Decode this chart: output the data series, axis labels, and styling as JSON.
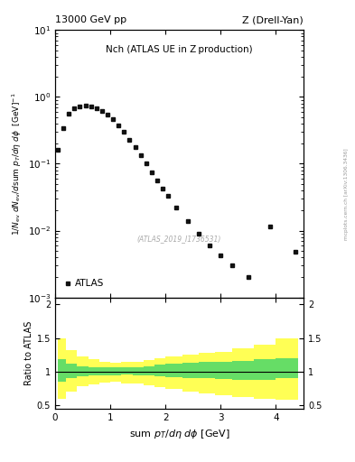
{
  "title_left": "13000 GeV pp",
  "title_right": "Z (Drell-Yan)",
  "plot_title": "Nch (ATLAS UE in Z production)",
  "xlabel": "sum p_{T}/d\\eta d\\phi [GeV]",
  "ylabel_top": "1/N_{ev} dN_{ev}/dsum p_{T}/d\\eta d\\phi  [GeV]",
  "ratio_ylabel": "Ratio to ATLAS",
  "watermark": "(ATLAS_2019_I1736531)",
  "arxiv_text": "mcplots.cern.ch [arXiv:1306.3436]",
  "legend_label": "ATLAS",
  "data_x": [
    0.05,
    0.15,
    0.25,
    0.35,
    0.45,
    0.55,
    0.65,
    0.75,
    0.85,
    0.95,
    1.05,
    1.15,
    1.25,
    1.35,
    1.45,
    1.55,
    1.65,
    1.75,
    1.85,
    1.95,
    2.05,
    2.2,
    2.4,
    2.6,
    2.8,
    3.0,
    3.2,
    3.5,
    3.9,
    4.35
  ],
  "data_y": [
    0.16,
    0.34,
    0.56,
    0.68,
    0.72,
    0.73,
    0.72,
    0.68,
    0.62,
    0.54,
    0.46,
    0.38,
    0.3,
    0.23,
    0.175,
    0.135,
    0.1,
    0.075,
    0.057,
    0.043,
    0.033,
    0.022,
    0.014,
    0.009,
    0.006,
    0.0042,
    0.003,
    0.002,
    0.0115,
    0.0048
  ],
  "ylim_main": [
    0.001,
    10
  ],
  "xlim": [
    0,
    4.5
  ],
  "ratio_ylim": [
    0.45,
    2.1
  ],
  "ratio_yticks": [
    0.5,
    1.0,
    1.5,
    2.0
  ],
  "ratio_yticklabels": [
    "0.5",
    "1",
    "1.5",
    "2"
  ],
  "ratio_x": [
    0.05,
    0.2,
    0.4,
    0.6,
    0.8,
    1.0,
    1.2,
    1.4,
    1.6,
    1.8,
    2.0,
    2.3,
    2.6,
    2.9,
    3.2,
    3.6,
    4.0,
    4.4
  ],
  "green_upper": [
    1.18,
    1.12,
    1.08,
    1.07,
    1.06,
    1.07,
    1.07,
    1.07,
    1.08,
    1.1,
    1.12,
    1.13,
    1.14,
    1.15,
    1.16,
    1.18,
    1.2,
    1.22
  ],
  "green_lower": [
    0.85,
    0.9,
    0.93,
    0.94,
    0.95,
    0.95,
    0.96,
    0.95,
    0.94,
    0.93,
    0.92,
    0.91,
    0.9,
    0.89,
    0.88,
    0.88,
    0.9,
    0.92
  ],
  "yellow_upper": [
    1.5,
    1.32,
    1.22,
    1.18,
    1.14,
    1.13,
    1.14,
    1.15,
    1.17,
    1.2,
    1.22,
    1.25,
    1.28,
    1.3,
    1.35,
    1.4,
    1.5,
    1.58
  ],
  "yellow_lower": [
    0.6,
    0.7,
    0.78,
    0.81,
    0.84,
    0.85,
    0.83,
    0.82,
    0.8,
    0.77,
    0.74,
    0.71,
    0.68,
    0.65,
    0.63,
    0.6,
    0.58,
    0.55
  ],
  "data_color": "#111111",
  "green_color": "#66dd66",
  "yellow_color": "#ffff55",
  "background_color": "#ffffff"
}
